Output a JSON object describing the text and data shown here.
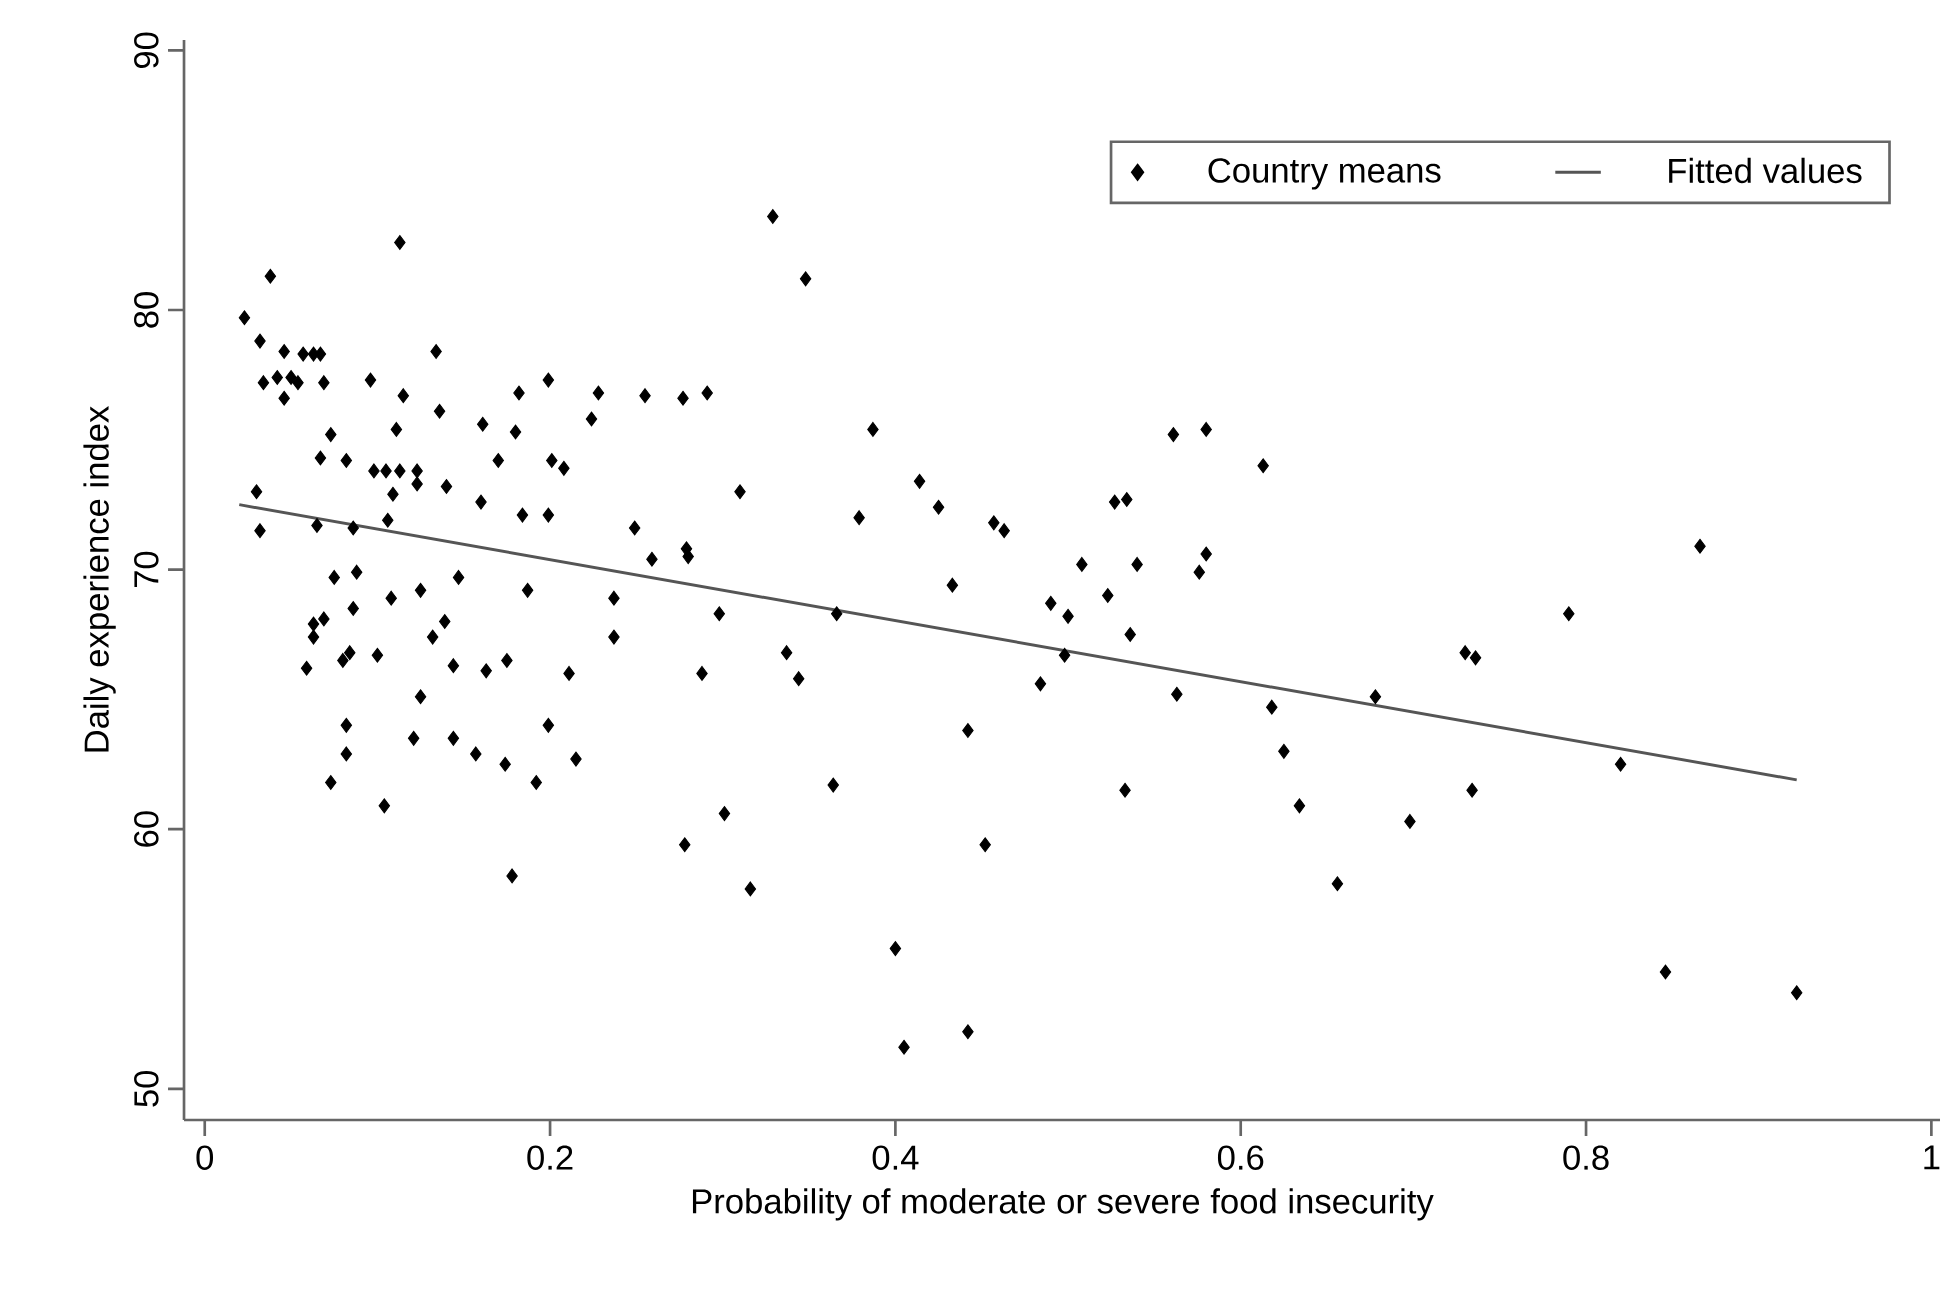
{
  "chart_data": {
    "type": "scatter",
    "xlabel": "Probability of moderate or severe food insecurity",
    "ylabel": "Daily experience index",
    "xlim": [
      -0.012,
      1.005
    ],
    "ylim": [
      48.8,
      90.4
    ],
    "xticks": [
      0,
      0.2,
      0.4,
      0.6,
      0.8,
      1
    ],
    "yticks": [
      50,
      60,
      70,
      80,
      90
    ],
    "grid": false,
    "legend": "top right",
    "marker": "diamond",
    "series": [
      {
        "name": "Country means",
        "color": "#000000",
        "x": [
          0.329,
          0.113,
          0.038,
          0.023,
          0.032,
          0.046,
          0.057,
          0.063,
          0.067,
          0.134,
          0.034,
          0.042,
          0.05,
          0.054,
          0.046,
          0.069,
          0.096,
          0.115,
          0.136,
          0.182,
          0.199,
          0.228,
          0.255,
          0.277,
          0.291,
          0.224,
          0.161,
          0.18,
          0.111,
          0.073,
          0.067,
          0.082,
          0.17,
          0.201,
          0.208,
          0.098,
          0.105,
          0.113,
          0.123,
          0.123,
          0.14,
          0.109,
          0.31,
          0.03,
          0.16,
          0.184,
          0.199,
          0.032,
          0.065,
          0.086,
          0.106,
          0.249,
          0.259,
          0.279,
          0.28,
          0.075,
          0.088,
          0.147,
          0.108,
          0.125,
          0.187,
          0.237,
          0.298,
          0.063,
          0.069,
          0.063,
          0.086,
          0.139,
          0.132,
          0.237,
          0.059,
          0.08,
          0.084,
          0.1,
          0.144,
          0.163,
          0.175,
          0.211,
          0.288,
          0.125,
          0.082,
          0.121,
          0.144,
          0.157,
          0.199,
          0.082,
          0.174,
          0.215,
          0.073,
          0.104,
          0.192,
          0.178,
          0.278,
          0.301,
          0.316,
          0.348,
          0.387,
          0.414,
          0.425,
          0.379,
          0.457,
          0.463,
          0.561,
          0.58,
          0.613,
          0.527,
          0.534,
          0.508,
          0.54,
          0.58,
          0.576,
          0.433,
          0.523,
          0.366,
          0.49,
          0.5,
          0.536,
          0.337,
          0.344,
          0.498,
          0.484,
          0.563,
          0.618,
          0.442,
          0.625,
          0.364,
          0.533,
          0.634,
          0.452,
          0.656,
          0.4,
          0.442,
          0.405,
          0.866,
          0.79,
          0.73,
          0.736,
          0.678,
          0.82,
          0.734,
          0.698,
          0.846,
          0.922
        ],
        "values": [
          83.6,
          82.6,
          81.3,
          79.7,
          78.8,
          78.4,
          78.3,
          78.3,
          78.3,
          78.4,
          77.2,
          77.4,
          77.4,
          77.2,
          76.6,
          77.2,
          77.3,
          76.7,
          76.1,
          76.8,
          77.3,
          76.8,
          76.7,
          76.6,
          76.8,
          75.8,
          75.6,
          75.3,
          75.4,
          75.2,
          74.3,
          74.2,
          74.2,
          74.2,
          73.9,
          73.8,
          73.8,
          73.8,
          73.8,
          73.3,
          73.2,
          72.9,
          73.0,
          73.0,
          72.6,
          72.1,
          72.1,
          71.5,
          71.7,
          71.6,
          71.9,
          71.6,
          70.4,
          70.8,
          70.5,
          69.7,
          69.9,
          69.7,
          68.9,
          69.2,
          69.2,
          68.9,
          68.3,
          67.9,
          68.1,
          67.4,
          68.5,
          68.0,
          67.4,
          67.4,
          66.2,
          66.5,
          66.8,
          66.7,
          66.3,
          66.1,
          66.5,
          66.0,
          66.0,
          65.1,
          64.0,
          63.5,
          63.5,
          62.9,
          64.0,
          62.9,
          62.5,
          62.7,
          61.8,
          60.9,
          61.8,
          58.2,
          59.4,
          60.6,
          57.7,
          81.2,
          75.4,
          73.4,
          72.4,
          72.0,
          71.8,
          71.5,
          75.2,
          75.4,
          74.0,
          72.6,
          72.7,
          70.2,
          70.2,
          70.6,
          69.9,
          69.4,
          69.0,
          68.3,
          68.7,
          68.2,
          67.5,
          66.8,
          65.8,
          66.7,
          65.6,
          65.2,
          64.7,
          63.8,
          63.0,
          61.7,
          61.5,
          60.9,
          59.4,
          57.9,
          55.4,
          52.2,
          51.6,
          70.9,
          68.3,
          66.8,
          66.6,
          65.1,
          62.5,
          61.5,
          60.3,
          54.5,
          53.7
        ]
      },
      {
        "name": "Fitted values",
        "type": "line",
        "color": "#555555",
        "marker": "none",
        "x": [
          0.02,
          0.922
        ],
        "values": [
          72.5,
          61.9
        ]
      }
    ]
  }
}
